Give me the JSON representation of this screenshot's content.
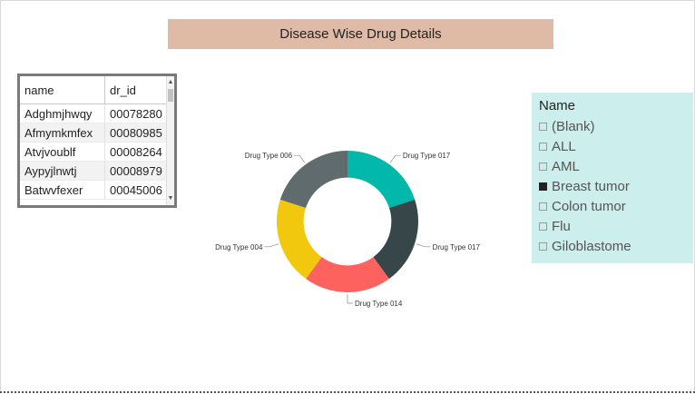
{
  "title": "Disease Wise Drug Details",
  "table": {
    "columns": [
      "name",
      "dr_id"
    ],
    "rows": [
      {
        "name": "Adghmjhwqy",
        "dr_id": "00078280"
      },
      {
        "name": "Afmymkmfex",
        "dr_id": "00080985"
      },
      {
        "name": "Atvjvoublf",
        "dr_id": "00008264"
      },
      {
        "name": "Aypyjlnwtj",
        "dr_id": "00008979"
      },
      {
        "name": "Batwvfexer",
        "dr_id": "00045006"
      }
    ]
  },
  "chart_data": {
    "type": "pie",
    "categories": [
      "Drug Type 017",
      "Drug Type 017",
      "Drug Type 014",
      "Drug Type 004",
      "Drug Type 006"
    ],
    "values": [
      1,
      1,
      1,
      1,
      1
    ],
    "colors": [
      "#01b8aa",
      "#374649",
      "#fd625e",
      "#f2c80f",
      "#5f6b6d"
    ],
    "hole": 0.62
  },
  "slicer": {
    "title": "Name",
    "items": [
      {
        "label": "(Blank)",
        "checked": false
      },
      {
        "label": "ALL",
        "checked": false
      },
      {
        "label": "AML",
        "checked": false
      },
      {
        "label": "Breast tumor",
        "checked": true
      },
      {
        "label": "Colon tumor",
        "checked": false
      },
      {
        "label": "Flu",
        "checked": false
      },
      {
        "label": "Giloblastome",
        "checked": false
      }
    ]
  }
}
